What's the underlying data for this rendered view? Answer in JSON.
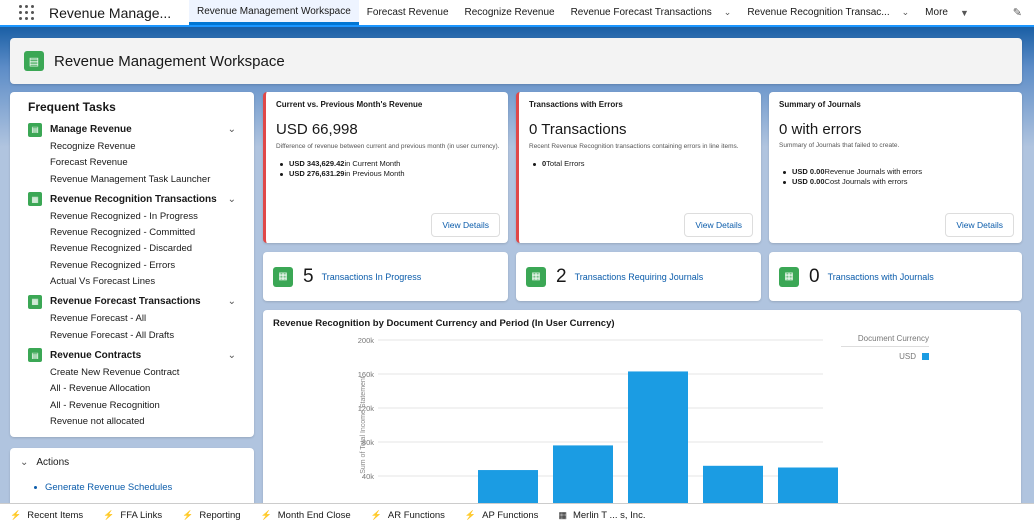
{
  "app": {
    "name": "Revenue Manage..."
  },
  "nav": {
    "tabs": [
      {
        "label": "Revenue Management Workspace"
      },
      {
        "label": "Forecast Revenue"
      },
      {
        "label": "Recognize Revenue"
      },
      {
        "label": "Revenue Forecast Transactions"
      },
      {
        "label": "Revenue Recognition Transac..."
      },
      {
        "label": "More"
      }
    ]
  },
  "header": {
    "title": "Revenue Management Workspace"
  },
  "tasks": {
    "title": "Frequent Tasks",
    "groups": [
      {
        "label": "Manage Revenue",
        "items": [
          "Recognize Revenue",
          "Forecast Revenue",
          "Revenue Management Task Launcher"
        ]
      },
      {
        "label": "Revenue Recognition Transactions",
        "items": [
          "Revenue Recognized - In Progress",
          "Revenue Recognized - Committed",
          "Revenue Recognized - Discarded",
          "Revenue Recognized - Errors",
          "Actual Vs Forecast Lines"
        ]
      },
      {
        "label": "Revenue Forecast Transactions",
        "items": [
          "Revenue Forecast - All",
          "Revenue Forecast - All Drafts"
        ]
      },
      {
        "label": "Revenue Contracts",
        "items": [
          "Create New Revenue Contract",
          "All - Revenue Allocation",
          "All - Revenue Recognition",
          "Revenue not allocated"
        ]
      }
    ]
  },
  "actions": {
    "title": "Actions",
    "items": [
      "Generate Revenue Schedules"
    ]
  },
  "kpis": [
    {
      "title": "Current vs. Previous Month's Revenue",
      "value": "USD 66,998",
      "desc": "Difference of revenue between current and previous month (in user currency).",
      "items": [
        {
          "bold": "USD 343,629.42",
          "text": " in Current Month"
        },
        {
          "bold": "USD 276,631.29",
          "text": " in Previous Month"
        }
      ],
      "button": "View Details"
    },
    {
      "title": "Transactions with Errors",
      "value": "0 Transactions",
      "desc": "Recent Revenue Recognition transactions containing errors in line items.",
      "items": [
        {
          "bold": "0",
          "text": " Total Errors"
        }
      ],
      "button": "View Details"
    },
    {
      "title": "Summary of Journals",
      "value": "0 with errors",
      "desc": "Summary of Journals that failed to create.",
      "items": [
        {
          "bold": "USD 0.00",
          "text": " Revenue Journals with errors"
        },
        {
          "bold": "USD 0.00",
          "text": " Cost Journals with errors"
        }
      ],
      "button": "View Details"
    }
  ],
  "stats": [
    {
      "value": "5",
      "label": "Transactions In Progress"
    },
    {
      "value": "2",
      "label": "Transactions Requiring Journals"
    },
    {
      "value": "0",
      "label": "Transactions with Journals"
    }
  ],
  "chart_data": {
    "type": "bar",
    "title": "Revenue Recognition by Document Currency and Period (In User Currency)",
    "ylabel": "Sum of Total Income Statement",
    "ylim": [
      0,
      200000
    ],
    "yticks": [
      "40k",
      "80k",
      "120k",
      "160k",
      "200k"
    ],
    "legend_title": "Document Currency",
    "legend": [
      {
        "name": "USD",
        "color": "#1b9ce3"
      }
    ],
    "series": [
      {
        "name": "USD",
        "values": [
          47000,
          76000,
          163000,
          52000,
          50000
        ]
      }
    ]
  },
  "footer": {
    "items": [
      "Recent Items",
      "FFA Links",
      "Reporting",
      "Month End Close",
      "AR Functions",
      "AP Functions",
      "Merlin T ... s, Inc."
    ]
  }
}
